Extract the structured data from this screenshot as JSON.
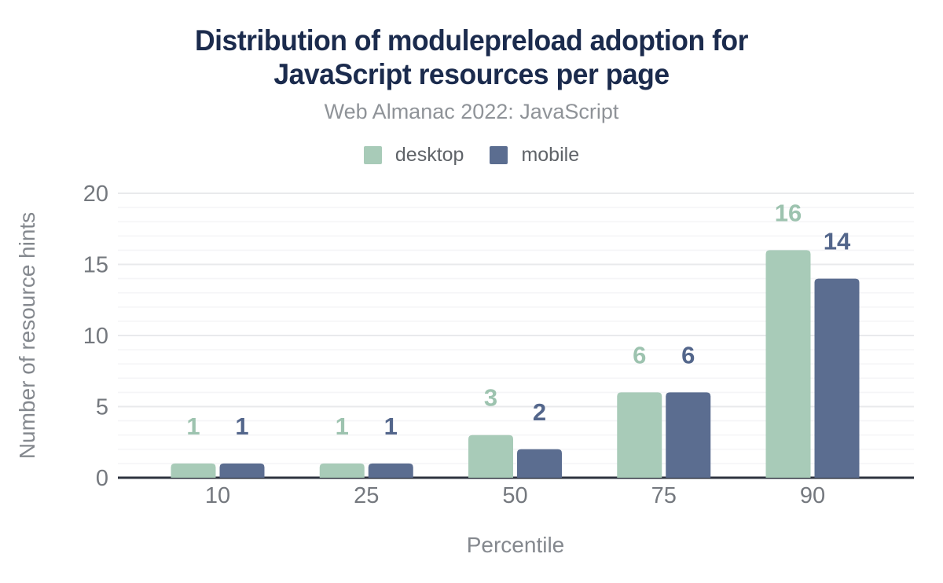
{
  "header": {
    "title_lines": [
      "Distribution of modulepreload adoption for",
      "JavaScript resources per page"
    ],
    "subtitle": "Web Almanac 2022: JavaScript"
  },
  "chart_data": {
    "type": "bar",
    "title": "Distribution of modulepreload adoption for JavaScript resources per page",
    "subtitle": "Web Almanac 2022: JavaScript",
    "categories": [
      "10",
      "25",
      "50",
      "75",
      "90"
    ],
    "series": [
      {
        "name": "desktop",
        "color": "#a8cbb8",
        "label_color": "#9dc3af",
        "values": [
          1,
          1,
          3,
          6,
          16
        ]
      },
      {
        "name": "mobile",
        "color": "#5b6d90",
        "label_color": "#53668b",
        "values": [
          1,
          1,
          2,
          6,
          14
        ]
      }
    ],
    "xlabel": "Percentile",
    "ylabel": "Number of resource hints",
    "ylim": [
      0,
      20
    ],
    "y_major_ticks": [
      0,
      5,
      10,
      15,
      20
    ],
    "y_minor_step": 1,
    "grid": "horizontal",
    "legend_position": "top",
    "value_labels": true
  },
  "style": {
    "title_color": "#1b2b4d",
    "subtitle_color": "#8f9398",
    "legend_text_color": "#5f6368",
    "tick_text_color": "#74787e",
    "axis_title_color": "#84888e",
    "baseline_color": "#2e333f",
    "grid_major_color": "#e9eaec",
    "grid_minor_color": "#f5f5f7",
    "background": "#ffffff"
  }
}
